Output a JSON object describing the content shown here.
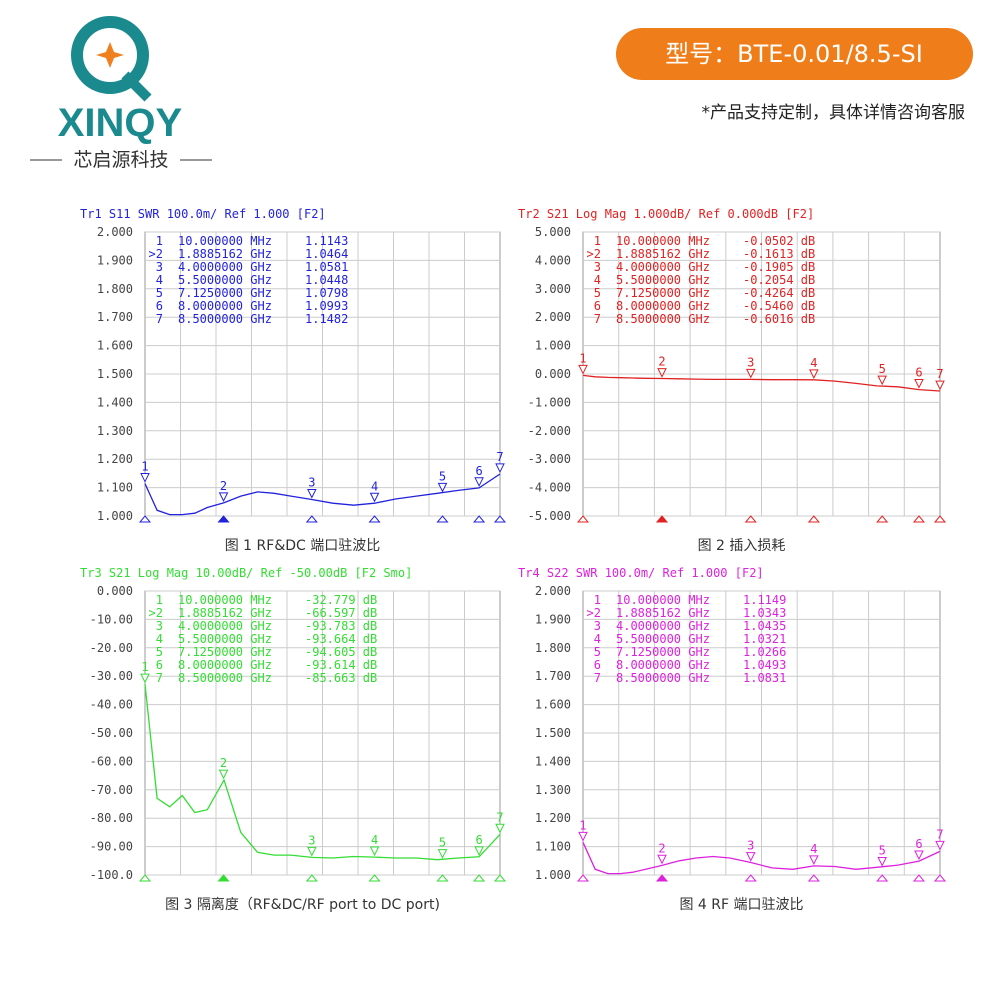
{
  "header": {
    "brand": "XINQY",
    "company": "芯启源科技",
    "model": "型号：BTE-0.01/8.5-SI",
    "note": "*产品支持定制，具体详情咨询客服"
  },
  "chart_data": [
    {
      "type": "line",
      "title": "Tr1 S11 SWR 100.0m/ Ref 1.000 [F2]",
      "caption": "图 1 RF&DC 端口驻波比",
      "color": "#2222dd",
      "ylim": [
        1,
        2
      ],
      "yticks": [
        {
          "value": 1,
          "label": "1.000"
        },
        {
          "value": 1.1,
          "label": "1.100"
        },
        {
          "value": 1.2,
          "label": "1.200"
        },
        {
          "value": 1.3,
          "label": "1.300"
        },
        {
          "value": 1.4,
          "label": "1.400"
        },
        {
          "value": 1.5,
          "label": "1.500"
        },
        {
          "value": 1.6,
          "label": "1.600"
        },
        {
          "value": 1.7,
          "label": "1.700"
        },
        {
          "value": 1.8,
          "label": "1.800"
        },
        {
          "value": 1.9,
          "label": "1.900"
        },
        {
          "value": 2,
          "label": "2.000"
        }
      ],
      "xlim": [
        0.01,
        8.5
      ],
      "x": [
        0.01,
        0.3,
        0.6,
        0.9,
        1.2,
        1.5,
        1.9,
        2.3,
        2.7,
        3.1,
        3.5,
        4,
        4.5,
        5,
        5.5,
        6,
        6.5,
        7,
        7.5,
        8,
        8.5
      ],
      "values": [
        1.114,
        1.02,
        1.005,
        1.005,
        1.01,
        1.03,
        1.047,
        1.07,
        1.085,
        1.08,
        1.07,
        1.058,
        1.045,
        1.038,
        1.045,
        1.06,
        1.07,
        1.08,
        1.09,
        1.099,
        1.148
      ],
      "table": [
        [
          "1",
          "10.000000 MHz",
          "1.1143"
        ],
        [
          ">2",
          "1.8885162 GHz",
          "1.0464"
        ],
        [
          "3",
          "4.0000000 GHz",
          "1.0581"
        ],
        [
          "4",
          "5.5000000 GHz",
          "1.0448"
        ],
        [
          "5",
          "7.1250000 GHz",
          "1.0798"
        ],
        [
          "6",
          "8.0000000 GHz",
          "1.0993"
        ],
        [
          "7",
          "8.5000000 GHz",
          "1.1482"
        ]
      ],
      "markers": {
        "labels": [
          "1",
          "2",
          "3",
          "4",
          "5",
          "6",
          "7"
        ],
        "x": [
          0.01,
          1.8885162,
          4,
          5.5,
          7.125,
          8,
          8.5
        ],
        "values": [
          1.1143,
          1.0464,
          1.0581,
          1.0448,
          1.0798,
          1.0993,
          1.1482
        ]
      }
    },
    {
      "type": "line",
      "title": "Tr2 S21 Log Mag 1.000dB/ Ref 0.000dB [F2]",
      "caption": "图 2 插入损耗",
      "color": "#e02222",
      "ylim": [
        -5,
        5
      ],
      "yticks": [
        {
          "value": -5,
          "label": "-5.000"
        },
        {
          "value": -4,
          "label": "-4.000"
        },
        {
          "value": -3,
          "label": "-3.000"
        },
        {
          "value": -2,
          "label": "-2.000"
        },
        {
          "value": -1,
          "label": "-1.000"
        },
        {
          "value": 0,
          "label": "0.000"
        },
        {
          "value": 1,
          "label": "1.000"
        },
        {
          "value": 2,
          "label": "2.000"
        },
        {
          "value": 3,
          "label": "3.000"
        },
        {
          "value": 4,
          "label": "4.000"
        },
        {
          "value": 5,
          "label": "5.000"
        }
      ],
      "xlim": [
        0.01,
        8.5
      ],
      "x": [
        0.01,
        0.3,
        0.6,
        0.9,
        1.2,
        1.5,
        1.9,
        2.3,
        2.7,
        3.1,
        3.5,
        4,
        4.5,
        5,
        5.5,
        6,
        6.5,
        7,
        7.5,
        8,
        8.5
      ],
      "values": [
        -0.05,
        -0.1,
        -0.12,
        -0.13,
        -0.14,
        -0.15,
        -0.16,
        -0.17,
        -0.18,
        -0.19,
        -0.19,
        -0.19,
        -0.2,
        -0.2,
        -0.205,
        -0.25,
        -0.33,
        -0.42,
        -0.45,
        -0.55,
        -0.6
      ],
      "table": [
        [
          "1",
          "10.000000 MHz",
          "-0.0502 dB"
        ],
        [
          ">2",
          "1.8885162 GHz",
          "-0.1613 dB"
        ],
        [
          "3",
          "4.0000000 GHz",
          "-0.1905 dB"
        ],
        [
          "4",
          "5.5000000 GHz",
          "-0.2054 dB"
        ],
        [
          "5",
          "7.1250000 GHz",
          "-0.4264 dB"
        ],
        [
          "6",
          "8.0000000 GHz",
          "-0.5460 dB"
        ],
        [
          "7",
          "8.5000000 GHz",
          "-0.6016 dB"
        ]
      ],
      "markers": {
        "labels": [
          "1",
          "2",
          "3",
          "4",
          "5",
          "6",
          "7"
        ],
        "x": [
          0.01,
          1.8885162,
          4,
          5.5,
          7.125,
          8,
          8.5
        ],
        "values": [
          -0.0502,
          -0.1613,
          -0.1905,
          -0.2054,
          -0.4264,
          -0.546,
          -0.6016
        ]
      }
    },
    {
      "type": "line",
      "title": "Tr3 S21 Log Mag 10.00dB/ Ref -50.00dB [F2 Smo]",
      "caption": "图 3 隔离度（RF&DC/RF port to DC port)",
      "color": "#33dd33",
      "ylim": [
        -100,
        0
      ],
      "yticks": [
        {
          "value": -100,
          "label": "-100.0"
        },
        {
          "value": -90,
          "label": "-90.00"
        },
        {
          "value": -80,
          "label": "-80.00"
        },
        {
          "value": -70,
          "label": "-70.00"
        },
        {
          "value": -60,
          "label": "-60.00"
        },
        {
          "value": -50,
          "label": "-50.00"
        },
        {
          "value": -40,
          "label": "-40.00"
        },
        {
          "value": -30,
          "label": "-30.00"
        },
        {
          "value": -20,
          "label": "-20.00"
        },
        {
          "value": -10,
          "label": "-10.00"
        },
        {
          "value": 0,
          "label": "0.000"
        }
      ],
      "xlim": [
        0.01,
        8.5
      ],
      "x": [
        0.01,
        0.3,
        0.6,
        0.9,
        1.2,
        1.5,
        1.9,
        2.3,
        2.7,
        3.1,
        3.5,
        4,
        4.5,
        5,
        5.5,
        6,
        6.5,
        7,
        7.5,
        8,
        8.5
      ],
      "values": [
        -32.8,
        -73,
        -76,
        -72,
        -78,
        -77,
        -66.6,
        -85,
        -92,
        -93,
        -93,
        -93.8,
        -94,
        -93.5,
        -93.7,
        -94,
        -94,
        -94.6,
        -94,
        -93.6,
        -85.7
      ],
      "table": [
        [
          "1",
          "10.000000 MHz",
          "-32.779 dB"
        ],
        [
          ">2",
          "1.8885162 GHz",
          "-66.597 dB"
        ],
        [
          "3",
          "4.0000000 GHz",
          "-93.783 dB"
        ],
        [
          "4",
          "5.5000000 GHz",
          "-93.664 dB"
        ],
        [
          "5",
          "7.1250000 GHz",
          "-94.605 dB"
        ],
        [
          "6",
          "8.0000000 GHz",
          "-93.614 dB"
        ],
        [
          "7",
          "8.5000000 GHz",
          "-85.663 dB"
        ]
      ],
      "markers": {
        "labels": [
          "1",
          "2",
          "3",
          "4",
          "5",
          "6",
          "7"
        ],
        "x": [
          0.01,
          1.8885162,
          4,
          5.5,
          7.125,
          8,
          8.5
        ],
        "values": [
          -32.779,
          -66.597,
          -93.783,
          -93.664,
          -94.605,
          -93.614,
          -85.663
        ]
      }
    },
    {
      "type": "line",
      "title": "Tr4 S22 SWR 100.0m/ Ref 1.000 [F2]",
      "caption": "图 4 RF 端口驻波比",
      "color": "#dd22dd",
      "ylim": [
        1,
        2
      ],
      "yticks": [
        {
          "value": 1,
          "label": "1.000"
        },
        {
          "value": 1.1,
          "label": "1.100"
        },
        {
          "value": 1.2,
          "label": "1.200"
        },
        {
          "value": 1.3,
          "label": "1.300"
        },
        {
          "value": 1.4,
          "label": "1.400"
        },
        {
          "value": 1.5,
          "label": "1.500"
        },
        {
          "value": 1.6,
          "label": "1.600"
        },
        {
          "value": 1.7,
          "label": "1.700"
        },
        {
          "value": 1.8,
          "label": "1.800"
        },
        {
          "value": 1.9,
          "label": "1.900"
        },
        {
          "value": 2,
          "label": "2.000"
        }
      ],
      "xlim": [
        0.01,
        8.5
      ],
      "x": [
        0.01,
        0.3,
        0.6,
        0.9,
        1.2,
        1.5,
        1.9,
        2.3,
        2.7,
        3.1,
        3.5,
        4,
        4.5,
        5,
        5.5,
        6,
        6.5,
        7,
        7.5,
        8,
        8.5
      ],
      "values": [
        1.115,
        1.02,
        1.005,
        1.005,
        1.01,
        1.02,
        1.034,
        1.05,
        1.06,
        1.065,
        1.06,
        1.044,
        1.025,
        1.02,
        1.032,
        1.03,
        1.02,
        1.027,
        1.035,
        1.049,
        1.083
      ],
      "table": [
        [
          "1",
          "10.000000 MHz",
          "1.1149"
        ],
        [
          ">2",
          "1.8885162 GHz",
          "1.0343"
        ],
        [
          "3",
          "4.0000000 GHz",
          "1.0435"
        ],
        [
          "4",
          "5.5000000 GHz",
          "1.0321"
        ],
        [
          "5",
          "7.1250000 GHz",
          "1.0266"
        ],
        [
          "6",
          "8.0000000 GHz",
          "1.0493"
        ],
        [
          "7",
          "8.5000000 GHz",
          "1.0831"
        ]
      ],
      "markers": {
        "labels": [
          "1",
          "2",
          "3",
          "4",
          "5",
          "6",
          "7"
        ],
        "x": [
          0.01,
          1.8885162,
          4,
          5.5,
          7.125,
          8,
          8.5
        ],
        "values": [
          1.1149,
          1.0343,
          1.0435,
          1.0321,
          1.0266,
          1.0493,
          1.0831
        ]
      }
    }
  ]
}
